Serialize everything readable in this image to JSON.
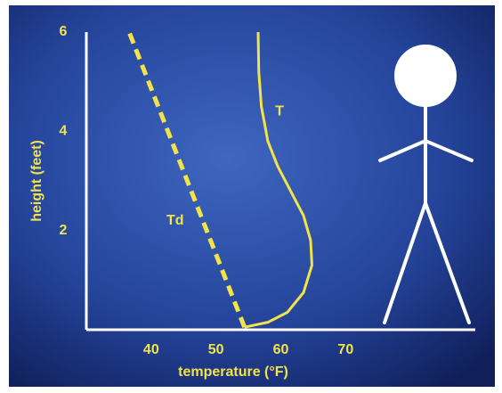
{
  "chart_data": {
    "type": "line",
    "x_label": "temperature (°F)",
    "y_label": "height (feet)",
    "xlim": [
      30,
      90
    ],
    "ylim": [
      0,
      6
    ],
    "xticks": [
      40,
      50,
      60,
      70
    ],
    "yticks": [
      2,
      4,
      6
    ],
    "series": [
      {
        "name": "T",
        "color": "#f2e34a",
        "dashed": false,
        "x": [
          54.4,
          58,
          61,
          63.5,
          64.8,
          64.6,
          63.5,
          61.5,
          59.5,
          58,
          57,
          56.6,
          56.5
        ],
        "values": [
          0.05,
          0.15,
          0.35,
          0.75,
          1.3,
          1.8,
          2.3,
          2.8,
          3.3,
          3.8,
          4.5,
          5.2,
          6
        ]
      },
      {
        "name": "Td",
        "color": "#f2e34a",
        "dashed": true,
        "x": [
          54.4,
          36.6
        ],
        "values": [
          0.05,
          6
        ]
      }
    ]
  }
}
